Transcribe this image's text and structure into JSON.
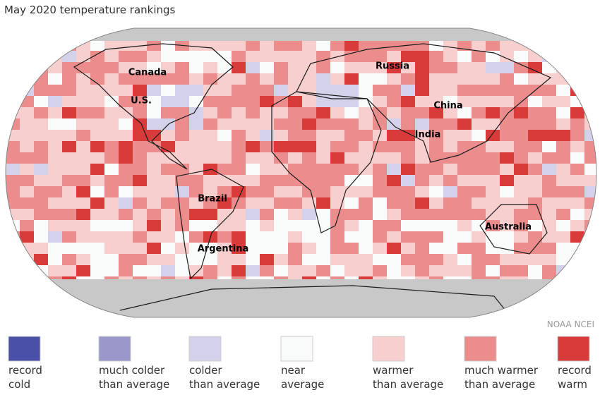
{
  "title": "May 2020 temperature rankings",
  "credit": "NOAA NCEI",
  "regions": [
    "Canada",
    "U.S.",
    "Russia",
    "China",
    "India",
    "Brazil",
    "Argentina",
    "Australia"
  ],
  "legend": [
    {
      "label": [
        "record",
        "cold"
      ],
      "color": "#4a4fa8"
    },
    {
      "label": [
        "much colder",
        "than average"
      ],
      "color": "#9a97cb"
    },
    {
      "label": [
        "colder",
        "than average"
      ],
      "color": "#d3d2ea"
    },
    {
      "label": [
        "near",
        "average"
      ],
      "color": "#f9fbfa"
    },
    {
      "label": [
        "warmer",
        "than average"
      ],
      "color": "#f8cfcf"
    },
    {
      "label": [
        "much warmer",
        "than average"
      ],
      "color": "#ec8d8d"
    },
    {
      "label": [
        "record",
        "warm"
      ],
      "color": "#d93a3a"
    }
  ]
}
